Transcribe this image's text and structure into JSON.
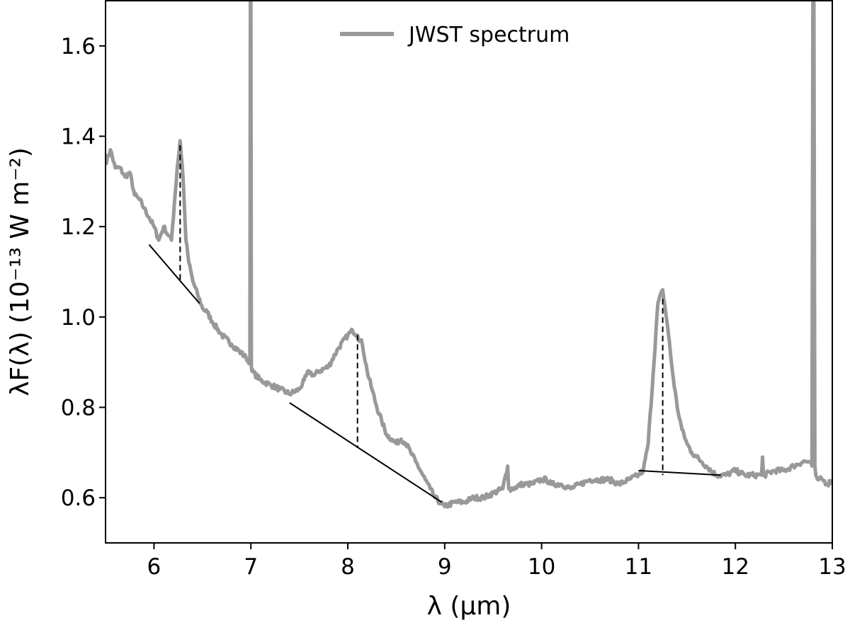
{
  "chart_data": {
    "type": "line",
    "title": "",
    "xlabel": "λ (μm)",
    "ylabel": "λF(λ) (10⁻¹³ W m⁻²)",
    "xlim": [
      5.5,
      13.0
    ],
    "ylim": [
      0.5,
      1.7
    ],
    "x_ticks": [
      6,
      7,
      8,
      9,
      10,
      11,
      12,
      13
    ],
    "x_tick_labels": [
      "6",
      "7",
      "8",
      "9",
      "10",
      "11",
      "12",
      "13"
    ],
    "y_ticks": [
      0.6,
      0.8,
      1.0,
      1.2,
      1.4,
      1.6
    ],
    "y_tick_labels": [
      "0.6",
      "0.8",
      "1.0",
      "1.2",
      "1.4",
      "1.6"
    ],
    "grid": false,
    "legend": {
      "placement": "top-center",
      "entries": [
        "JWST spectrum"
      ]
    },
    "series": [
      {
        "name": "JWST spectrum",
        "color": "#999999",
        "x": [
          5.5,
          5.55,
          5.6,
          5.65,
          5.7,
          5.75,
          5.8,
          5.85,
          5.9,
          5.95,
          6.0,
          6.05,
          6.1,
          6.15,
          6.18,
          6.21,
          6.24,
          6.27,
          6.3,
          6.33,
          6.36,
          6.4,
          6.45,
          6.5,
          6.55,
          6.6,
          6.7,
          6.8,
          6.9,
          6.95,
          6.99,
          6.995,
          7.0,
          7.005,
          7.01,
          7.1,
          7.2,
          7.3,
          7.4,
          7.5,
          7.55,
          7.6,
          7.65,
          7.7,
          7.8,
          7.9,
          8.0,
          8.05,
          8.1,
          8.15,
          8.2,
          8.25,
          8.3,
          8.35,
          8.4,
          8.45,
          8.5,
          8.55,
          8.6,
          8.65,
          8.7,
          8.75,
          8.8,
          8.85,
          8.9,
          8.95,
          9.0,
          9.1,
          9.2,
          9.3,
          9.4,
          9.5,
          9.6,
          9.65,
          9.66,
          9.67,
          9.7,
          9.8,
          9.9,
          10.0,
          10.05,
          10.1,
          10.2,
          10.3,
          10.4,
          10.5,
          10.6,
          10.7,
          10.8,
          10.9,
          11.0,
          11.05,
          11.1,
          11.15,
          11.2,
          11.25,
          11.3,
          11.35,
          11.4,
          11.45,
          11.5,
          11.55,
          11.6,
          11.65,
          11.7,
          11.8,
          11.9,
          12.0,
          12.1,
          12.2,
          12.27,
          12.28,
          12.29,
          12.3,
          12.4,
          12.5,
          12.6,
          12.7,
          12.75,
          12.79,
          12.8,
          12.81,
          12.82,
          12.83,
          12.85,
          12.9,
          12.95,
          13.0
        ],
        "y": [
          1.34,
          1.37,
          1.33,
          1.33,
          1.31,
          1.32,
          1.27,
          1.26,
          1.24,
          1.22,
          1.2,
          1.17,
          1.2,
          1.18,
          1.17,
          1.25,
          1.33,
          1.39,
          1.31,
          1.17,
          1.12,
          1.08,
          1.05,
          1.02,
          1.01,
          0.99,
          0.96,
          0.94,
          0.92,
          0.91,
          0.9,
          1.7,
          1.7,
          0.89,
          0.88,
          0.86,
          0.85,
          0.84,
          0.83,
          0.84,
          0.86,
          0.88,
          0.87,
          0.88,
          0.89,
          0.93,
          0.96,
          0.97,
          0.96,
          0.94,
          0.88,
          0.84,
          0.8,
          0.77,
          0.74,
          0.73,
          0.72,
          0.73,
          0.72,
          0.7,
          0.68,
          0.66,
          0.64,
          0.62,
          0.6,
          0.59,
          0.58,
          0.59,
          0.59,
          0.6,
          0.6,
          0.61,
          0.62,
          0.67,
          0.62,
          0.62,
          0.62,
          0.63,
          0.63,
          0.64,
          0.64,
          0.63,
          0.63,
          0.62,
          0.63,
          0.64,
          0.64,
          0.64,
          0.63,
          0.64,
          0.65,
          0.66,
          0.72,
          0.87,
          1.03,
          1.06,
          0.98,
          0.88,
          0.8,
          0.75,
          0.72,
          0.7,
          0.69,
          0.68,
          0.67,
          0.65,
          0.65,
          0.66,
          0.65,
          0.65,
          0.65,
          0.69,
          0.65,
          0.65,
          0.66,
          0.66,
          0.67,
          0.68,
          0.68,
          0.67,
          1.7,
          1.7,
          0.67,
          0.65,
          0.64,
          0.64,
          0.63,
          0.64
        ]
      }
    ],
    "continuum_lines": [
      {
        "x": [
          5.95,
          6.47
        ],
        "y": [
          1.16,
          1.03
        ]
      },
      {
        "x": [
          7.4,
          8.97
        ],
        "y": [
          0.81,
          0.59
        ]
      },
      {
        "x": [
          11.0,
          11.85
        ],
        "y": [
          0.66,
          0.65
        ]
      }
    ],
    "peak_markers": [
      {
        "x": 6.27,
        "y_top": 1.38,
        "y_bottom": 1.08
      },
      {
        "x": 8.1,
        "y_top": 0.96,
        "y_bottom": 0.71
      },
      {
        "x": 11.25,
        "y_top": 1.04,
        "y_bottom": 0.65
      }
    ]
  }
}
